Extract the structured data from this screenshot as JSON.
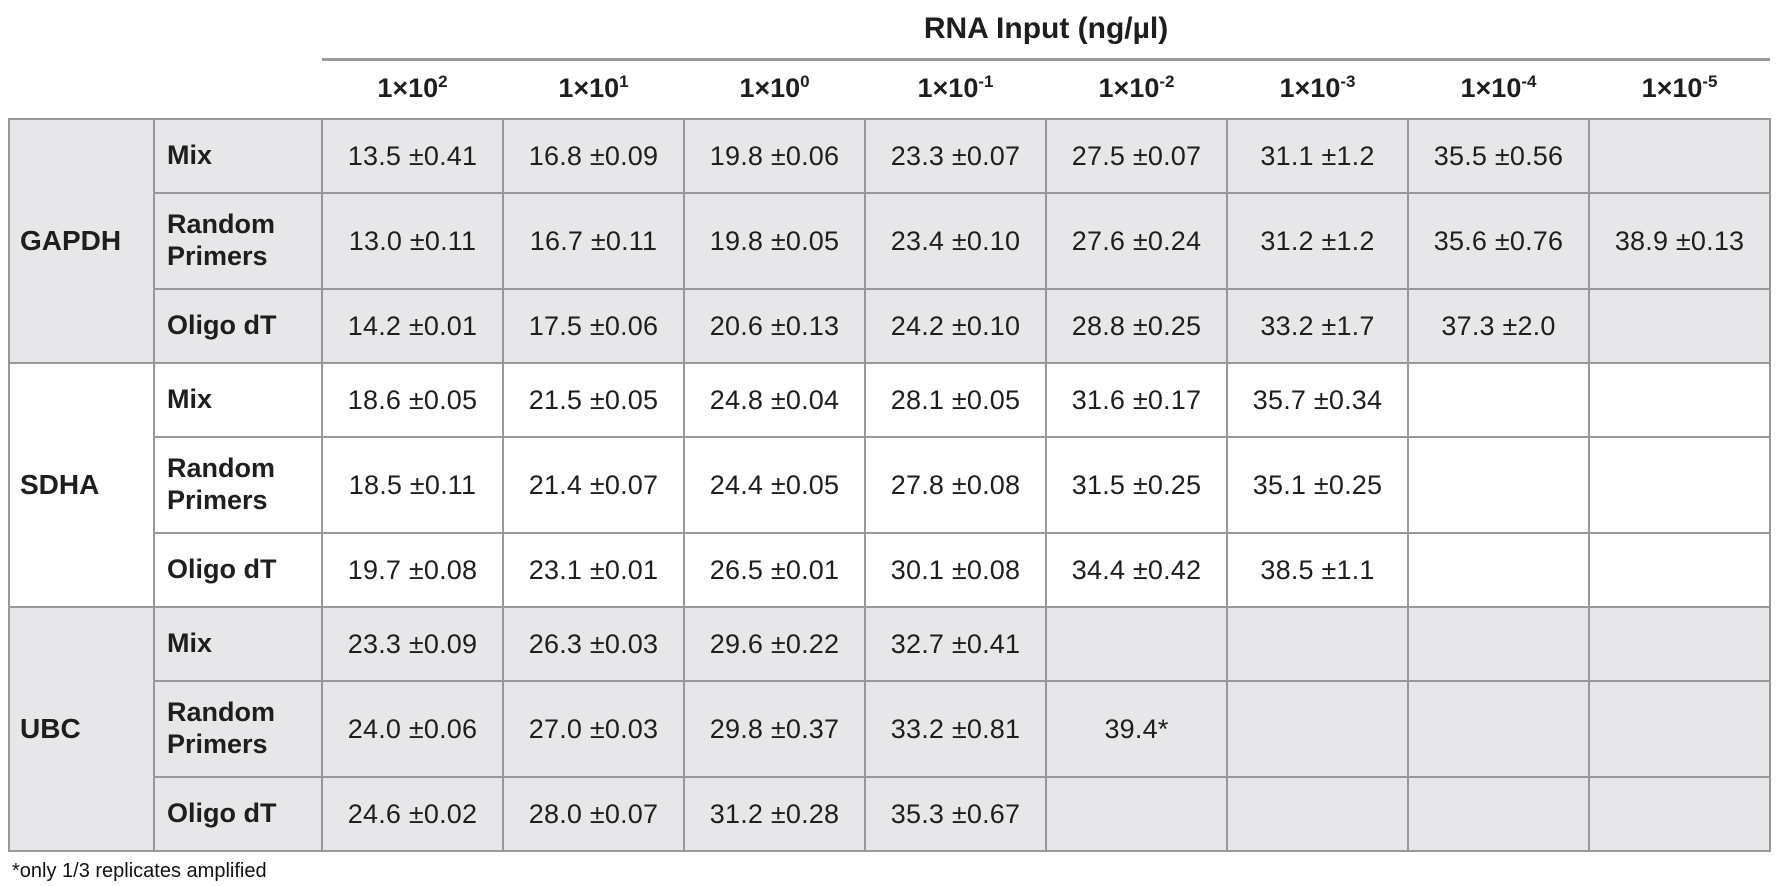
{
  "chart_data": {
    "type": "table",
    "title": "RNA Input (ng/µl)",
    "column_headers": [
      {
        "label": "1×10^2",
        "base": "1×10",
        "exp": "2"
      },
      {
        "label": "1×10^1",
        "base": "1×10",
        "exp": "1"
      },
      {
        "label": "1×10^0",
        "base": "1×10",
        "exp": "0"
      },
      {
        "label": "1×10^-1",
        "base": "1×10",
        "exp": "-1"
      },
      {
        "label": "1×10^-2",
        "base": "1×10",
        "exp": "-2"
      },
      {
        "label": "1×10^-3",
        "base": "1×10",
        "exp": "-3"
      },
      {
        "label": "1×10^-4",
        "base": "1×10",
        "exp": "-4"
      },
      {
        "label": "1×10^-5",
        "base": "1×10",
        "exp": "-5"
      }
    ],
    "row_label_columns": [
      "gene",
      "priming_method"
    ],
    "groups": [
      {
        "gene": "GAPDH",
        "shaded": true,
        "rows": [
          {
            "label": "Mix",
            "values": [
              "13.5 ±0.41",
              "16.8 ±0.09",
              "19.8 ±0.06",
              "23.3 ±0.07",
              "27.5 ±0.07",
              "31.1 ±1.2",
              "35.5 ±0.56",
              ""
            ]
          },
          {
            "label": "Random Primers",
            "values": [
              "13.0 ±0.11",
              "16.7 ±0.11",
              "19.8 ±0.05",
              "23.4 ±0.10",
              "27.6 ±0.24",
              "31.2 ±1.2",
              "35.6 ±0.76",
              "38.9 ±0.13"
            ]
          },
          {
            "label": "Oligo dT",
            "values": [
              "14.2 ±0.01",
              "17.5 ±0.06",
              "20.6 ±0.13",
              "24.2 ±0.10",
              "28.8 ±0.25",
              "33.2 ±1.7",
              "37.3 ±2.0",
              ""
            ]
          }
        ]
      },
      {
        "gene": "SDHA",
        "shaded": false,
        "rows": [
          {
            "label": "Mix",
            "values": [
              "18.6 ±0.05",
              "21.5 ±0.05",
              "24.8 ±0.04",
              "28.1 ±0.05",
              "31.6 ±0.17",
              "35.7 ±0.34",
              "",
              ""
            ]
          },
          {
            "label": "Random Primers",
            "values": [
              "18.5 ±0.11",
              "21.4 ±0.07",
              "24.4 ±0.05",
              "27.8 ±0.08",
              "31.5 ±0.25",
              "35.1 ±0.25",
              "",
              ""
            ]
          },
          {
            "label": "Oligo dT",
            "values": [
              "19.7 ±0.08",
              "23.1 ±0.01",
              "26.5 ±0.01",
              "30.1 ±0.08",
              "34.4 ±0.42",
              "38.5 ±1.1",
              "",
              ""
            ]
          }
        ]
      },
      {
        "gene": "UBC",
        "shaded": true,
        "rows": [
          {
            "label": "Mix",
            "values": [
              "23.3 ±0.09",
              "26.3 ±0.03",
              "29.6 ±0.22",
              "32.7 ±0.41",
              "",
              "",
              "",
              ""
            ]
          },
          {
            "label": "Random Primers",
            "values": [
              "24.0 ±0.06",
              "27.0 ±0.03",
              "29.8 ±0.37",
              "33.2 ±0.81",
              "39.4*",
              "",
              "",
              ""
            ]
          },
          {
            "label": "Oligo dT",
            "values": [
              "24.6 ±0.02",
              "28.0 ±0.07",
              "31.2 ±0.28",
              "35.3 ±0.67",
              "",
              "",
              "",
              ""
            ]
          }
        ]
      }
    ],
    "footnote": "*only 1/3 replicates amplified"
  },
  "colors": {
    "shaded_row_bg": "#e7e7e9",
    "grid_border": "#98989b",
    "title_rule": "#9a9a9c",
    "text": "#1e1e1e"
  }
}
